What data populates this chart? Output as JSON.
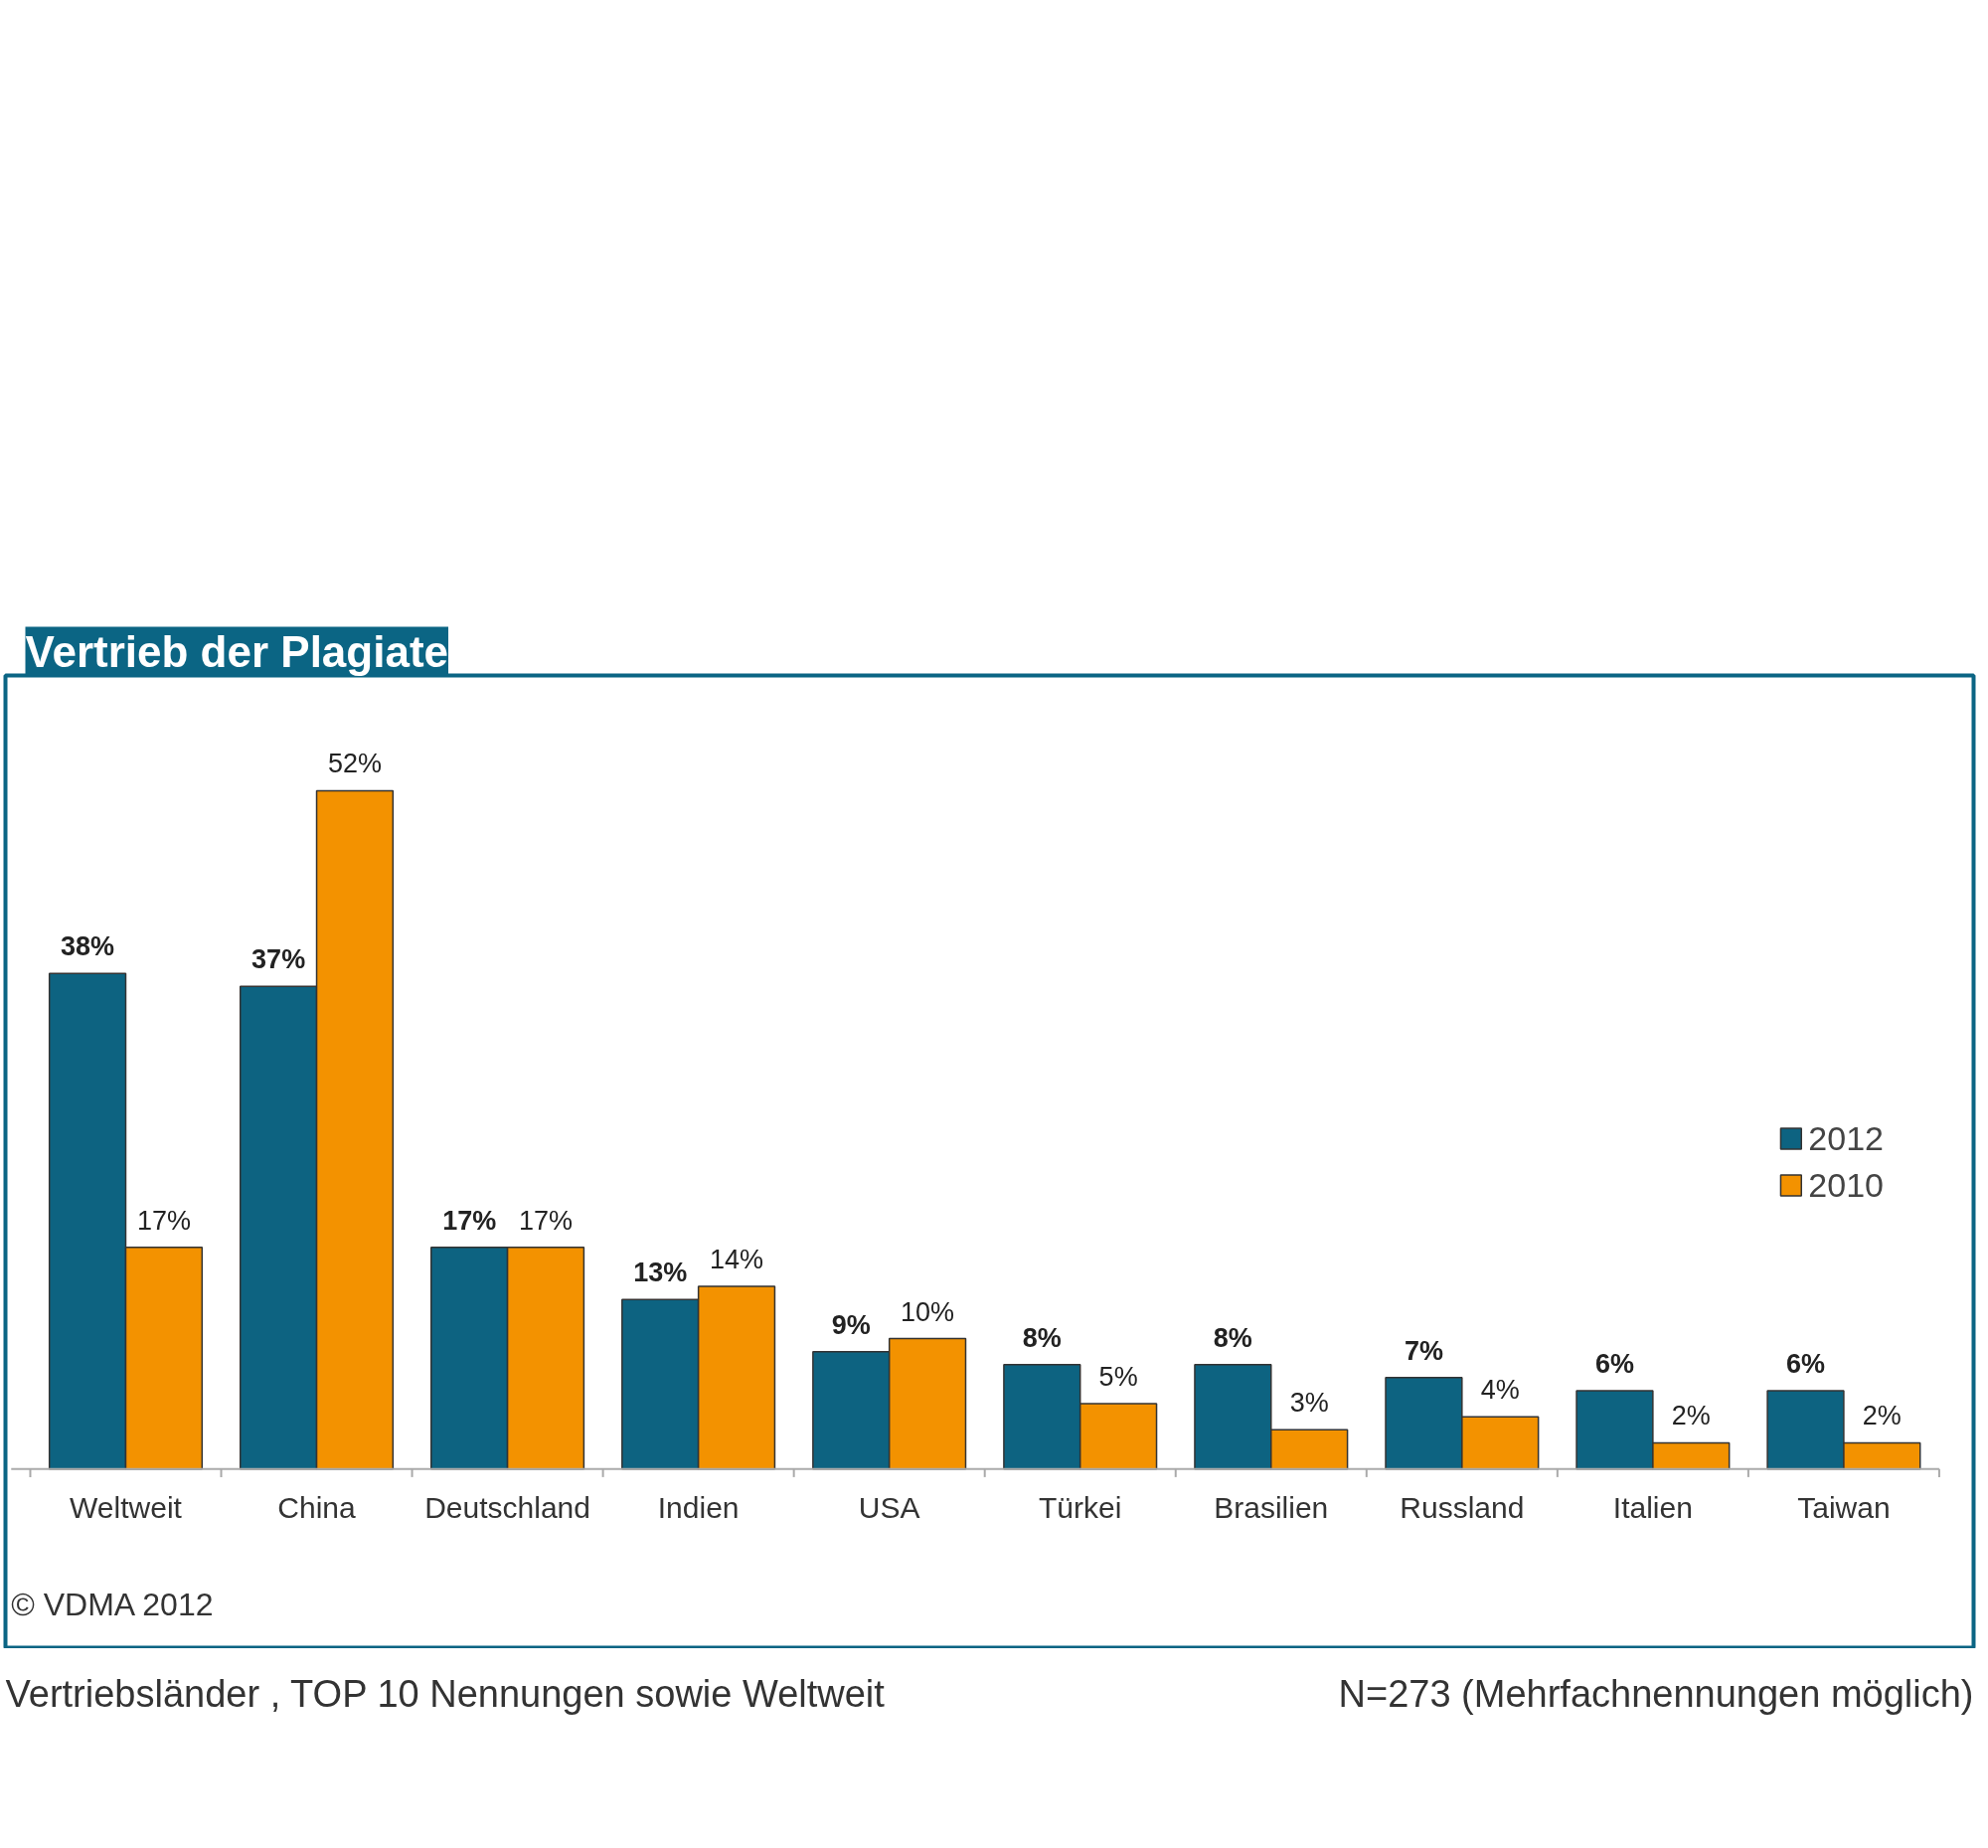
{
  "chart_data": {
    "type": "bar",
    "title": "Vertrieb der Plagiate",
    "categories": [
      "Weltweit",
      "China",
      "Deutschland",
      "Indien",
      "USA",
      "Türkei",
      "Brasilien",
      "Russland",
      "Italien",
      "Taiwan"
    ],
    "series": [
      {
        "name": "2012",
        "color": "#0d6381",
        "values": [
          38,
          37,
          17,
          13,
          9,
          8,
          8,
          7,
          6,
          6
        ],
        "value_labels": [
          "38%",
          "37%",
          "17%",
          "13%",
          "9%",
          "8%",
          "8%",
          "7%",
          "6%",
          "6%"
        ]
      },
      {
        "name": "2010",
        "color": "#f39200",
        "values": [
          17,
          52,
          17,
          14,
          10,
          5,
          3,
          4,
          2,
          2
        ],
        "value_labels": [
          "17%",
          "52%",
          "17%",
          "14%",
          "10%",
          "5%",
          "3%",
          "4%",
          "2%",
          "2%"
        ]
      }
    ],
    "legend": "right",
    "annotations": [
      "© VDMA 2012",
      "Vertriebsländer , TOP 10 Nennungen sowie Weltweit",
      "N=273 (Mehrfachnennungen möglich)"
    ]
  }
}
